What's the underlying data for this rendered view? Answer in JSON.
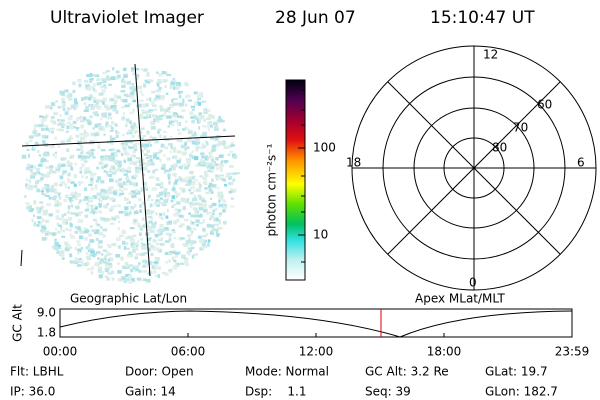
{
  "header": {
    "title": "Ultraviolet Imager",
    "date": "28 Jun 07",
    "time": "15:10:47 UT"
  },
  "colorbar": {
    "label": "photon cm⁻²s⁻¹",
    "ticks": [
      "100",
      "10"
    ]
  },
  "polar": {
    "mlt_labels": [
      "12",
      "6",
      "0",
      "18"
    ],
    "mlat_labels": [
      "60",
      "70",
      "80"
    ]
  },
  "altitude_panel": {
    "ylabel": "GC Alt",
    "left_label": "Geographic Lat/Lon",
    "right_label": "Apex MLat/MLT",
    "yticks": [
      "9.0",
      "1.8"
    ],
    "xticks": [
      "00:00",
      "06:00",
      "12:00",
      "18:00",
      "23:59"
    ]
  },
  "footer": {
    "rows": [
      [
        "Flt: LBHL",
        "Door: Open",
        "Mode: Normal",
        "GC Alt: 3.2 Re",
        "GLat: 19.7"
      ],
      [
        "IP: 36.0",
        "Gain: 14",
        "Dsp:    1.1",
        "Seq: 39",
        "GLon: 182.7"
      ]
    ]
  }
}
